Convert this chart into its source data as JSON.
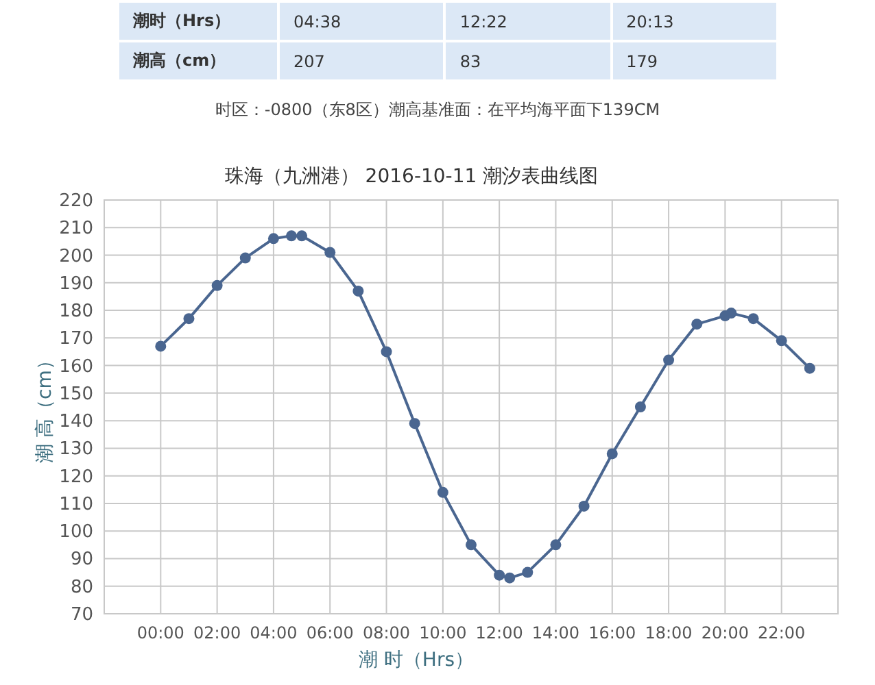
{
  "chart_data": {
    "type": "line",
    "title": "珠海（九洲港） 2016-10-11 潮汐表曲线图",
    "xlabel": "潮 时（Hrs）",
    "ylabel": "潮 高（cm）",
    "annotations": [
      "潮时（Hrs）",
      "04:38",
      "12:22",
      "20:13",
      "潮高（cm）",
      "207",
      "83",
      "179",
      "时区：-0800（东8区）潮高基准面：在平均海平面下139CM"
    ],
    "x": [
      0,
      1,
      2,
      3,
      4,
      4.633,
      5,
      6,
      7,
      8,
      9,
      10,
      11,
      12,
      12.367,
      13,
      14,
      15,
      16,
      17,
      18,
      19,
      20,
      20.217,
      21,
      22,
      23
    ],
    "series": [
      {
        "color": "#4a6690",
        "values": [
          167,
          177,
          189,
          199,
          206,
          207,
          207,
          201,
          187,
          165,
          139,
          114,
          95,
          84,
          83,
          85,
          95,
          109,
          128,
          145,
          162,
          175,
          178,
          179,
          177,
          169,
          159
        ]
      }
    ],
    "xlim": [
      -2,
      24
    ],
    "xticks": [
      {
        "value": 0,
        "label": "00:00"
      },
      {
        "value": 2,
        "label": "02:00"
      },
      {
        "value": 4,
        "label": "04:00"
      },
      {
        "value": 6,
        "label": "06:00"
      },
      {
        "value": 8,
        "label": "08:00"
      },
      {
        "value": 10,
        "label": "10:00"
      },
      {
        "value": 12,
        "label": "12:00"
      },
      {
        "value": 14,
        "label": "14:00"
      },
      {
        "value": 16,
        "label": "16:00"
      },
      {
        "value": 18,
        "label": "18:00"
      },
      {
        "value": 20,
        "label": "20:00"
      },
      {
        "value": 22,
        "label": "22:00"
      }
    ],
    "ylim": [
      70,
      220
    ],
    "yticks": [
      70,
      80,
      90,
      100,
      110,
      120,
      130,
      140,
      150,
      160,
      170,
      180,
      190,
      200,
      210,
      220
    ],
    "grid": true,
    "marker": "circle",
    "line_style": "solid"
  }
}
